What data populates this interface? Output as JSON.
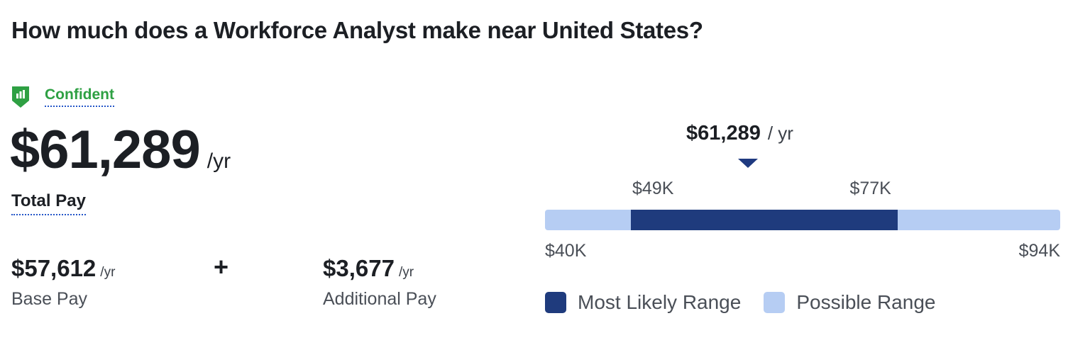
{
  "headline": "How much does a Workforce Analyst make near United States?",
  "confidence": {
    "label": "Confident",
    "icon": "shield-chart-icon",
    "color": "#2ea043"
  },
  "total_pay": {
    "amount": "$61,289",
    "unit": "/yr",
    "label": "Total Pay"
  },
  "base_pay": {
    "amount": "$57,612",
    "unit": "/yr",
    "label": "Base Pay"
  },
  "plus_sign": "+",
  "additional_pay": {
    "amount": "$3,677",
    "unit": "/yr",
    "label": "Additional Pay"
  },
  "range": {
    "median_label": "$61,289",
    "median_unit": "/ yr",
    "median_value": 61289,
    "possible_min_label": "$40K",
    "possible_max_label": "$94K",
    "likely_min_label": "$49K",
    "likely_max_label": "$77K",
    "possible_min": 40000,
    "possible_max": 94000,
    "likely_min": 49000,
    "likely_max": 77000,
    "colors": {
      "likely": "#1f3b7d",
      "possible": "#b6cdf3",
      "pointer": "#1f3a80"
    }
  },
  "legend": {
    "likely_label": "Most Likely Range",
    "possible_label": "Possible Range"
  }
}
